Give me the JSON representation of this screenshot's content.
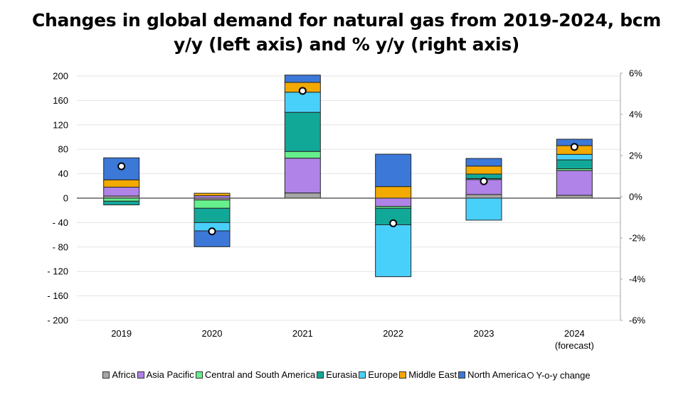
{
  "chart_data": {
    "type": "bar",
    "stacked": true,
    "title_lines": [
      "Changes in global demand for natural gas from 2019-2024, bcm",
      "y/y (left axis) and % y/y (right axis)"
    ],
    "xlabel": "",
    "ylabel": "",
    "categories": [
      "2019",
      "2020",
      "2021",
      "2022",
      "2023",
      "2024"
    ],
    "category_sublabels": [
      "",
      "",
      "",
      "",
      "",
      "(forecast)"
    ],
    "ylim": [
      -200,
      200
    ],
    "yticks": [
      200,
      160,
      120,
      80,
      40,
      0,
      -40,
      -80,
      -120,
      -160,
      -200
    ],
    "ytick_labels": [
      "200",
      "160",
      "120",
      "80",
      "40",
      "0",
      "- 40",
      "- 80",
      "- 120",
      "- 160",
      "- 200"
    ],
    "y2lim": [
      -6,
      6
    ],
    "y2ticks": [
      6,
      4,
      2,
      0,
      -2,
      -4,
      -6
    ],
    "y2tick_labels": [
      "6%",
      "4%",
      "2%",
      "0%",
      "-2%",
      "-4%",
      "-6%"
    ],
    "grid": true,
    "legend_position": "bottom",
    "series": [
      {
        "name": "Africa",
        "color": "#a6a6a6",
        "values": [
          3.5,
          -3,
          8.5,
          0,
          6,
          4.7
        ]
      },
      {
        "name": "Asia Pacific",
        "color": "#b083e8",
        "values": [
          14.5,
          4,
          57,
          -13.6,
          24.5,
          40.5
        ]
      },
      {
        "name": "Central and South America",
        "color": "#66f08c",
        "values": [
          -5,
          -13.6,
          11,
          -3,
          1.5,
          3
        ]
      },
      {
        "name": "Eurasia",
        "color": "#12a898",
        "values": [
          -6,
          -23.4,
          64,
          -27,
          7.5,
          14.5
        ]
      },
      {
        "name": "Europe",
        "color": "#49d0fa",
        "values": [
          0,
          -13.5,
          33,
          -85,
          -36,
          9
        ]
      },
      {
        "name": "Middle East",
        "color": "#f2a900",
        "values": [
          12,
          4,
          16,
          19,
          13,
          14.3
        ]
      },
      {
        "name": "North America",
        "color": "#3c78d8",
        "values": [
          36,
          -26,
          12,
          53,
          12.5,
          10.5
        ]
      }
    ],
    "line_series": {
      "name": "Y-o-y change",
      "axis": "right",
      "unit": "%",
      "values": [
        1.48,
        -1.68,
        5.14,
        -1.29,
        0.75,
        2.42
      ]
    }
  }
}
